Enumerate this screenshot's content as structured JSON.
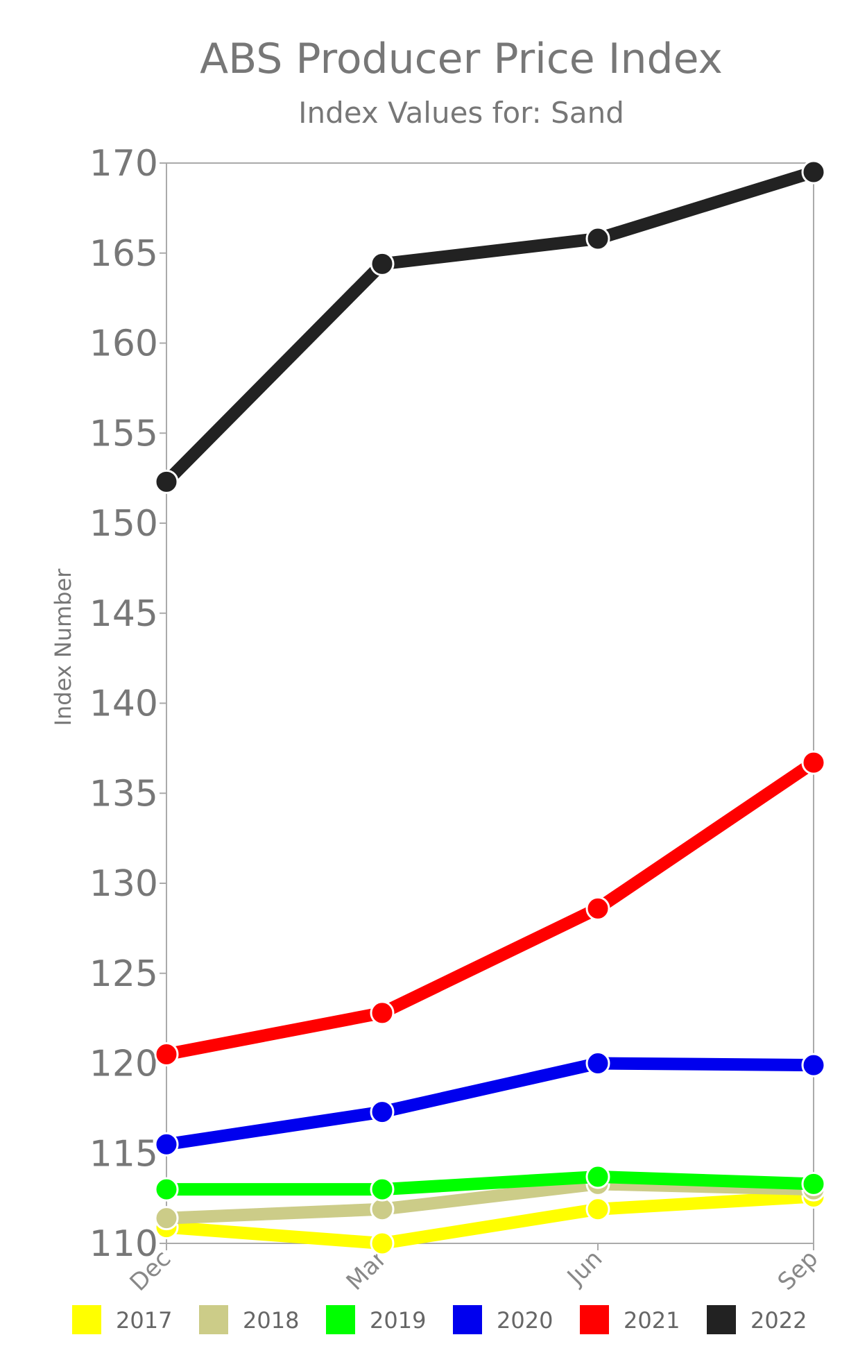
{
  "chart_data": {
    "type": "line",
    "title": "ABS Producer Price Index",
    "subtitle": "Index Values for: Sand",
    "ylabel": "Index Number",
    "xlabel": "",
    "categories": [
      "Dec",
      "Mar",
      "Jun",
      "Sep"
    ],
    "ylim": [
      110,
      170
    ],
    "yticks": [
      110,
      115,
      120,
      125,
      130,
      135,
      140,
      145,
      150,
      155,
      160,
      165,
      170
    ],
    "grid": false,
    "legend": "bottom",
    "series": [
      {
        "name": "2017",
        "color": "#ffff00",
        "values": [
          110.9,
          110.0,
          111.9,
          112.6
        ]
      },
      {
        "name": "2018",
        "color": "#cccc88",
        "values": [
          111.4,
          111.9,
          113.3,
          113.0
        ]
      },
      {
        "name": "2019",
        "color": "#00ff00",
        "values": [
          113.0,
          113.0,
          113.7,
          113.3
        ]
      },
      {
        "name": "2020",
        "color": "#0000ee",
        "values": [
          115.5,
          117.3,
          120.0,
          119.9
        ]
      },
      {
        "name": "2021",
        "color": "#ff0000",
        "values": [
          120.5,
          122.8,
          128.6,
          136.7
        ]
      },
      {
        "name": "2022",
        "color": "#222222",
        "values": [
          152.3,
          164.4,
          165.8,
          169.5
        ]
      }
    ]
  }
}
